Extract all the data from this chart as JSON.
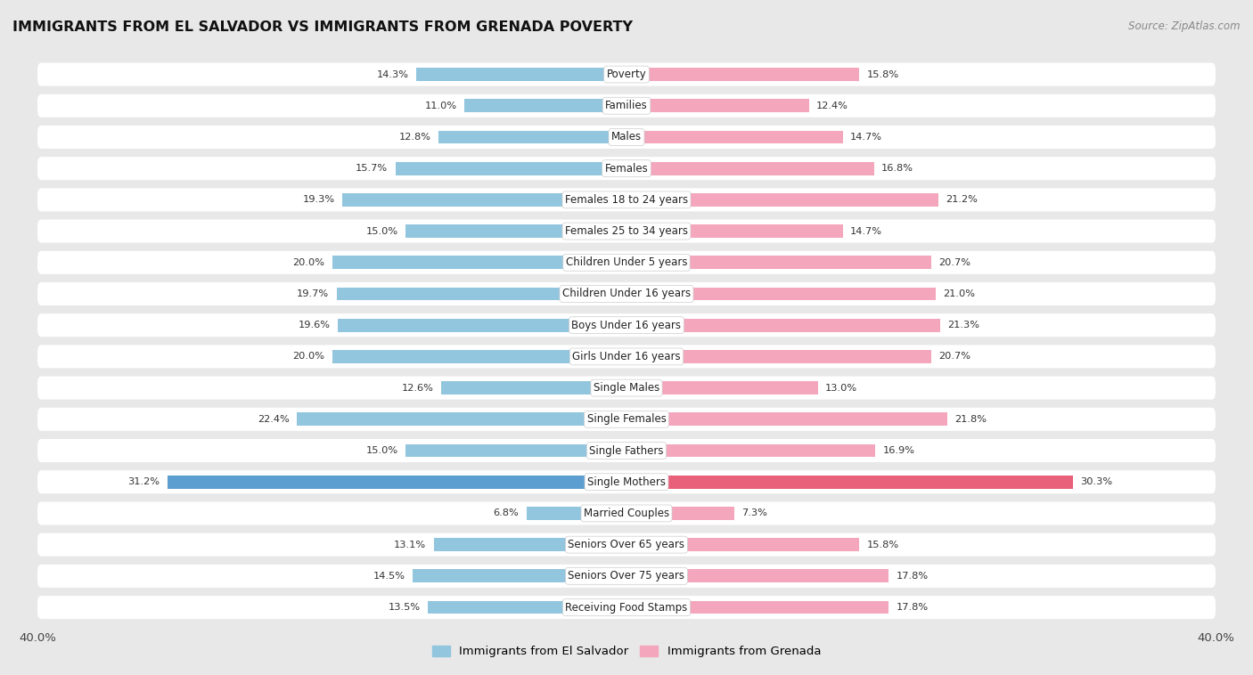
{
  "title": "IMMIGRANTS FROM EL SALVADOR VS IMMIGRANTS FROM GRENADA POVERTY",
  "source": "Source: ZipAtlas.com",
  "categories": [
    "Poverty",
    "Families",
    "Males",
    "Females",
    "Females 18 to 24 years",
    "Females 25 to 34 years",
    "Children Under 5 years",
    "Children Under 16 years",
    "Boys Under 16 years",
    "Girls Under 16 years",
    "Single Males",
    "Single Females",
    "Single Fathers",
    "Single Mothers",
    "Married Couples",
    "Seniors Over 65 years",
    "Seniors Over 75 years",
    "Receiving Food Stamps"
  ],
  "el_salvador": [
    14.3,
    11.0,
    12.8,
    15.7,
    19.3,
    15.0,
    20.0,
    19.7,
    19.6,
    20.0,
    12.6,
    22.4,
    15.0,
    31.2,
    6.8,
    13.1,
    14.5,
    13.5
  ],
  "grenada": [
    15.8,
    12.4,
    14.7,
    16.8,
    21.2,
    14.7,
    20.7,
    21.0,
    21.3,
    20.7,
    13.0,
    21.8,
    16.9,
    30.3,
    7.3,
    15.8,
    17.8,
    17.8
  ],
  "color_salvador": "#92c5de",
  "color_grenada": "#f4a6bc",
  "color_salvador_highlight": "#5b9ecf",
  "color_grenada_highlight": "#e8607a",
  "background_color": "#e8e8e8",
  "bar_background": "#ffffff",
  "xlim": 40.0,
  "legend_salvador": "Immigrants from El Salvador",
  "legend_grenada": "Immigrants from Grenada",
  "highlight_row": "Single Mothers"
}
